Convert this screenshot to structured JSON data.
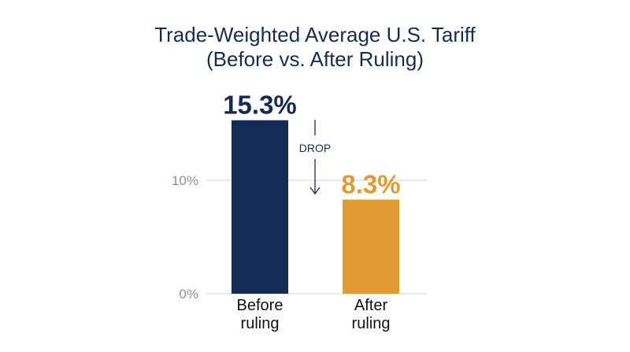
{
  "chart_data": {
    "type": "bar",
    "title": [
      "Trade-Weighted Average U.S. Tariff",
      "(Before vs. After Ruling)"
    ],
    "categories": [
      [
        "Before",
        "ruling"
      ],
      [
        "After",
        "ruling"
      ]
    ],
    "values": [
      15.3,
      8.3
    ],
    "value_labels": [
      "15.3%",
      "8.3%"
    ],
    "colors": [
      "#142b55",
      "#e09b32"
    ],
    "ylim": [
      0,
      15.5
    ],
    "yticks": [
      0,
      10
    ],
    "ytick_labels": [
      "0%",
      "10%"
    ],
    "grid": true,
    "xlabel": "",
    "ylabel": "",
    "annotation": {
      "text": "DROP",
      "style": "down-arrow"
    }
  }
}
